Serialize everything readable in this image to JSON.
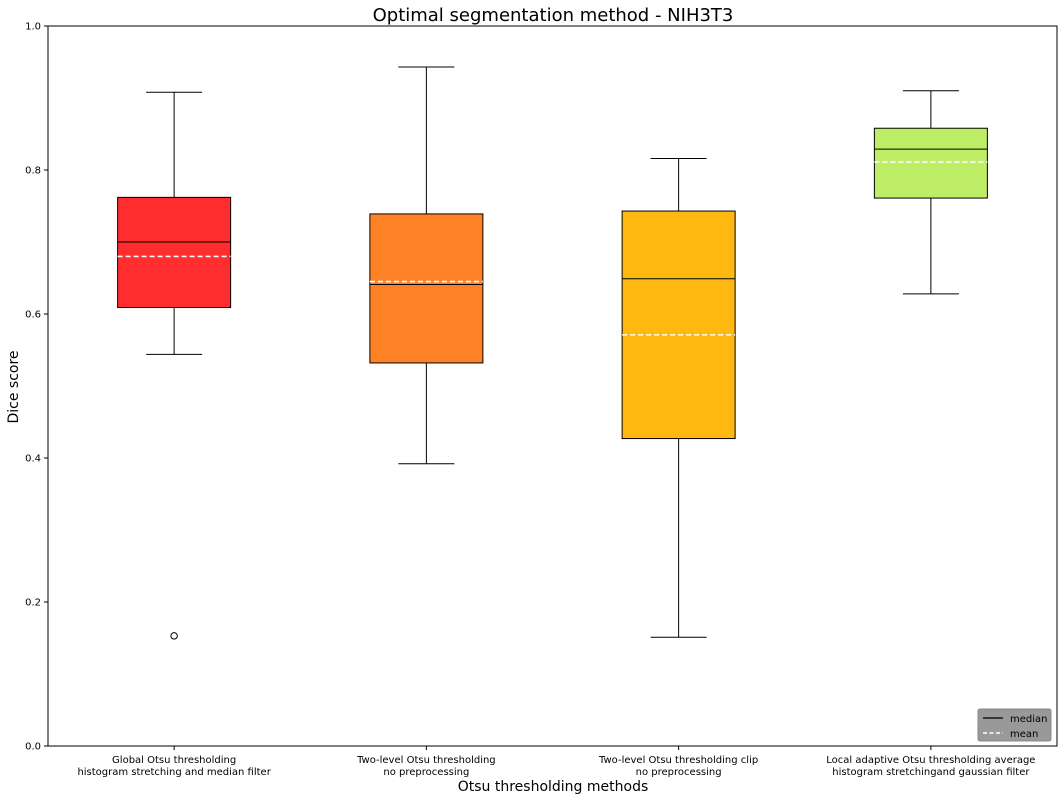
{
  "chart_data": {
    "type": "box",
    "title": "Optimal segmentation method - NIH3T3",
    "xlabel": "Otsu thresholding methods",
    "ylabel": "Dice score",
    "ylim": [
      0,
      1.0
    ],
    "yticks": [
      "0.0",
      "0.2",
      "0.4",
      "0.6",
      "0.8",
      "1.0"
    ],
    "grid": false,
    "legend_position": "bottom-right",
    "legend": [
      {
        "label": "median",
        "style": "solid",
        "color": "#000000"
      },
      {
        "label": "mean",
        "style": "dashed",
        "color": "#ffffff"
      }
    ],
    "categories": [
      [
        "Global Otsu thresholding",
        "histogram stretching and median filter"
      ],
      [
        "Two-level Otsu thresholding",
        "no preprocessing"
      ],
      [
        "Two-level Otsu thresholding clip",
        "no preprocessing"
      ],
      [
        "Local adaptive Otsu thresholding average",
        "histogram stretchingand gaussian filter"
      ]
    ],
    "boxes": [
      {
        "whisker_low": 0.544,
        "q1": 0.609,
        "median": 0.7,
        "q3": 0.762,
        "whisker_high": 0.908,
        "mean": 0.68,
        "outliers": [
          0.153
        ],
        "color": "#ff2d2d"
      },
      {
        "whisker_low": 0.392,
        "q1": 0.532,
        "median": 0.641,
        "q3": 0.739,
        "whisker_high": 0.943,
        "mean": 0.645,
        "outliers": [],
        "color": "#ff8226"
      },
      {
        "whisker_low": 0.151,
        "q1": 0.427,
        "median": 0.649,
        "q3": 0.743,
        "whisker_high": 0.816,
        "mean": 0.571,
        "outliers": [],
        "color": "#ffb810"
      },
      {
        "whisker_low": 0.628,
        "q1": 0.761,
        "median": 0.829,
        "q3": 0.858,
        "whisker_high": 0.91,
        "mean": 0.811,
        "outliers": [],
        "color": "#bdee66"
      }
    ]
  }
}
